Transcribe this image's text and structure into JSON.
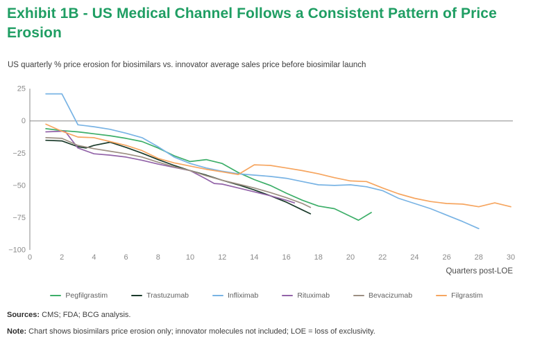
{
  "title": "Exhibit 1B - US Medical Channel Follows a Consistent Pattern of Price Erosion",
  "subtitle": "US quarterly % price erosion for biosimilars vs. innovator average sales price before biosimilar launch",
  "footer": {
    "sources_label": "Sources:",
    "sources_text": " CMS; FDA; BCG analysis.",
    "note_label": "Note:",
    "note_text": " Chart shows biosimilars price erosion only; innovator molecules not included; LOE = loss of exclusivity."
  },
  "colors": {
    "title_green": "#1f9e63",
    "axis_line": "#8a8a8a",
    "tick_text": "#8a8a8a",
    "body_text": "#3d3d3d"
  },
  "chart_data": {
    "type": "line",
    "title": "",
    "xlabel": "Quarters post-LOE",
    "ylabel": "",
    "xlim": [
      0,
      30
    ],
    "ylim": [
      -100,
      25
    ],
    "x_ticks": [
      0,
      2,
      4,
      6,
      8,
      10,
      12,
      14,
      16,
      18,
      20,
      22,
      24,
      26,
      28,
      30
    ],
    "y_ticks": [
      25,
      0,
      -25,
      -50,
      -75,
      -100
    ],
    "grid": "zero-line-only",
    "legend_position": "bottom",
    "series": [
      {
        "name": "Pegfilgrastim",
        "color": "#3cae68",
        "x": [
          1,
          2,
          3,
          4,
          5,
          6,
          7,
          8,
          9,
          10,
          11,
          12,
          13,
          14,
          15,
          16,
          17,
          18,
          19,
          20,
          20.5,
          21.3
        ],
        "values": [
          -6,
          -7.5,
          -8.5,
          -10,
          -11.5,
          -13.5,
          -16,
          -21,
          -27,
          -31.5,
          -30,
          -33,
          -40,
          -45.5,
          -50,
          -56,
          -61.5,
          -66,
          -68,
          -74,
          -77,
          -71
        ]
      },
      {
        "name": "Trastuzumab",
        "color": "#1a3a2a",
        "x": [
          1,
          2,
          3,
          3.5,
          4,
          5,
          6,
          7,
          8,
          9,
          10,
          11,
          12,
          13,
          14,
          15,
          16,
          17,
          17.5
        ],
        "values": [
          -15,
          -15.5,
          -20,
          -21,
          -19,
          -16.5,
          -20.5,
          -25,
          -30,
          -34.5,
          -38.5,
          -42,
          -46,
          -49.5,
          -53.5,
          -58,
          -63,
          -69,
          -72
        ]
      },
      {
        "name": "Infliximab",
        "color": "#78b3e4",
        "x": [
          1,
          2,
          3,
          4,
          5,
          6,
          7,
          8,
          9,
          10,
          11,
          12,
          13,
          14,
          15,
          16,
          17,
          18,
          19,
          20,
          21,
          22,
          23,
          24,
          25,
          26,
          27,
          28
        ],
        "values": [
          21,
          21,
          -3,
          -4.5,
          -6.5,
          -9.5,
          -13,
          -20,
          -28,
          -33,
          -36.5,
          -39,
          -41,
          -42,
          -43,
          -44.5,
          -47,
          -49.5,
          -50,
          -49.5,
          -51,
          -54,
          -60,
          -64,
          -68,
          -73,
          -78,
          -83.5
        ]
      },
      {
        "name": "Rituximab",
        "color": "#9263a8",
        "x": [
          1,
          2,
          2.2,
          3,
          4,
          5,
          6,
          7,
          8,
          9,
          10,
          11,
          11.5,
          12,
          13,
          14,
          15,
          16,
          16.5
        ],
        "values": [
          -8.5,
          -8,
          -8,
          -21,
          -25.5,
          -26.5,
          -28,
          -30.5,
          -33.5,
          -36,
          -38.5,
          -45,
          -48.5,
          -49,
          -52,
          -55,
          -58,
          -61.5,
          -63.5
        ]
      },
      {
        "name": "Bevacizumab",
        "color": "#9c8f82",
        "x": [
          1,
          2,
          3,
          4,
          5,
          6,
          7,
          8,
          9,
          10,
          11,
          12,
          13,
          14,
          15,
          16,
          17,
          17.5
        ],
        "values": [
          -13,
          -13.5,
          -19,
          -21.5,
          -23.5,
          -25.5,
          -28,
          -32,
          -35.5,
          -38.5,
          -42.5,
          -46,
          -49,
          -52,
          -55.5,
          -59.5,
          -64,
          -67
        ]
      },
      {
        "name": "Filgrastim",
        "color": "#f6a55f",
        "x": [
          1,
          2,
          3,
          4,
          5,
          6,
          7,
          8,
          9,
          10,
          11,
          12,
          13,
          14,
          15,
          16,
          17,
          18,
          19,
          20,
          21,
          22,
          23,
          24,
          25,
          26,
          27,
          28,
          29,
          30
        ],
        "values": [
          -2.5,
          -8,
          -12.5,
          -13,
          -16,
          -19,
          -23,
          -29,
          -32.5,
          -35,
          -37.5,
          -39.5,
          -41.5,
          -34,
          -34.5,
          -36.5,
          -38.5,
          -41,
          -44,
          -46.5,
          -47,
          -52,
          -56.5,
          -60,
          -62.5,
          -64,
          -64.5,
          -66.5,
          -63.5,
          -66.5
        ]
      }
    ]
  }
}
